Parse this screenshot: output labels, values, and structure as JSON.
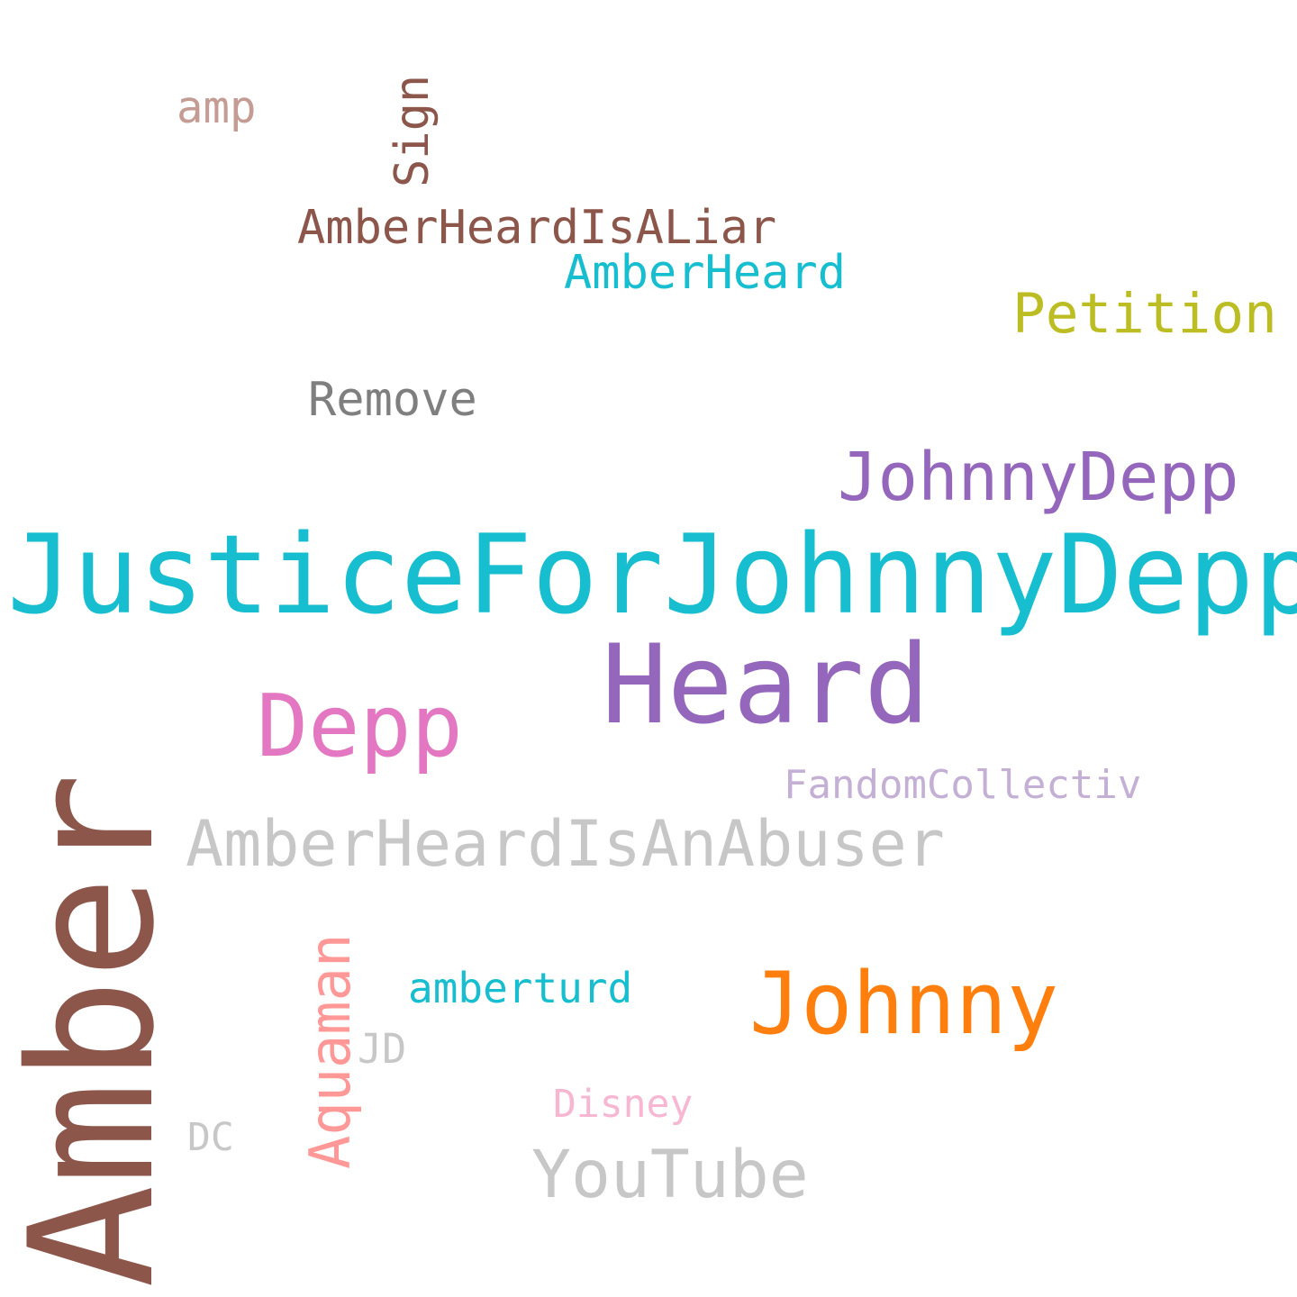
{
  "words": {
    "justice": {
      "text": "JusticeForJohnnyDepp",
      "color": "#17becf"
    },
    "amber": {
      "text": "Amber",
      "color": "#8c564b"
    },
    "heard": {
      "text": "Heard",
      "color": "#9467bd"
    },
    "depp": {
      "text": "Depp",
      "color": "#e377c2"
    },
    "johnny": {
      "text": "Johnny",
      "color": "#ff7f0e"
    },
    "johnnydepp": {
      "text": "JohnnyDepp",
      "color": "#9467bd"
    },
    "abuser": {
      "text": "AmberHeardIsAnAbuser",
      "color": "#c7c7c7"
    },
    "youtube": {
      "text": "YouTube",
      "color": "#c7c7c7"
    },
    "petition": {
      "text": "Petition",
      "color": "#bcbd22"
    },
    "liar": {
      "text": "AmberHeardIsALiar",
      "color": "#8c564b"
    },
    "amberheard": {
      "text": "AmberHeard",
      "color": "#17becf"
    },
    "remove": {
      "text": "Remove",
      "color": "#7f7f7f"
    },
    "fandom": {
      "text": "FandomCollectiv",
      "color": "#c5b0d5"
    },
    "aquaman": {
      "text": "Aquaman",
      "color": "#ff9896"
    },
    "amberturd": {
      "text": "amberturd",
      "color": "#17becf"
    },
    "amp": {
      "text": "amp",
      "color": "#c49c94"
    },
    "sign": {
      "text": "Sign",
      "color": "#8c564b"
    },
    "disney": {
      "text": "Disney",
      "color": "#f7b6d2"
    },
    "jd": {
      "text": "JD",
      "color": "#c7c7c7"
    },
    "dc": {
      "text": "DC",
      "color": "#c7c7c7"
    }
  }
}
